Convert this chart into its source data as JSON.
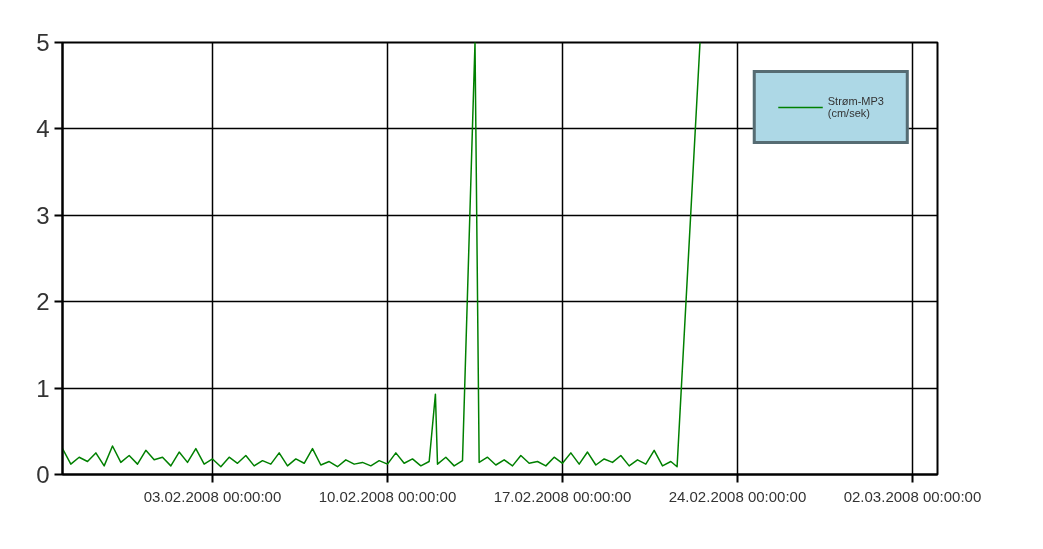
{
  "chart_data": {
    "type": "line",
    "x": [
      "2008-01-28T00:00",
      "2008-01-28T08:00",
      "2008-01-28T16:00",
      "2008-01-29T00:00",
      "2008-01-29T08:00",
      "2008-01-29T16:00",
      "2008-01-30T00:00",
      "2008-01-30T08:00",
      "2008-01-30T16:00",
      "2008-01-31T00:00",
      "2008-01-31T08:00",
      "2008-01-31T16:00",
      "2008-02-01T00:00",
      "2008-02-01T08:00",
      "2008-02-01T16:00",
      "2008-02-02T00:00",
      "2008-02-02T08:00",
      "2008-02-02T16:00",
      "2008-02-03T00:00",
      "2008-02-03T08:00",
      "2008-02-03T16:00",
      "2008-02-04T00:00",
      "2008-02-04T08:00",
      "2008-02-04T16:00",
      "2008-02-05T00:00",
      "2008-02-05T08:00",
      "2008-02-05T16:00",
      "2008-02-06T00:00",
      "2008-02-06T08:00",
      "2008-02-06T16:00",
      "2008-02-07T00:00",
      "2008-02-07T08:00",
      "2008-02-07T16:00",
      "2008-02-08T00:00",
      "2008-02-08T08:00",
      "2008-02-08T16:00",
      "2008-02-09T00:00",
      "2008-02-09T08:00",
      "2008-02-09T16:00",
      "2008-02-10T00:00",
      "2008-02-10T08:00",
      "2008-02-10T16:00",
      "2008-02-11T00:00",
      "2008-02-11T08:00",
      "2008-02-11T16:00",
      "2008-02-11T22:00",
      "2008-02-12T00:00",
      "2008-02-12T08:00",
      "2008-02-12T16:00",
      "2008-02-13T00:00",
      "2008-02-13T12:00",
      "2008-02-13T16:00",
      "2008-02-14T00:00",
      "2008-02-14T08:00",
      "2008-02-14T16:00",
      "2008-02-15T00:00",
      "2008-02-15T08:00",
      "2008-02-15T16:00",
      "2008-02-16T00:00",
      "2008-02-16T08:00",
      "2008-02-16T16:00",
      "2008-02-17T00:00",
      "2008-02-17T08:00",
      "2008-02-17T16:00",
      "2008-02-18T00:00",
      "2008-02-18T08:00",
      "2008-02-18T16:00",
      "2008-02-19T00:00",
      "2008-02-19T08:00",
      "2008-02-19T16:00",
      "2008-02-20T00:00",
      "2008-02-20T08:00",
      "2008-02-20T16:00",
      "2008-02-21T00:00",
      "2008-02-21T08:00",
      "2008-02-21T14:00",
      "2008-02-22T12:00"
    ],
    "series": [
      {
        "name": "Strøm-MP3 (cm/sek)",
        "color": "#008000",
        "values": [
          0.3,
          0.12,
          0.2,
          0.15,
          0.25,
          0.1,
          0.33,
          0.14,
          0.22,
          0.12,
          0.28,
          0.17,
          0.2,
          0.1,
          0.26,
          0.14,
          0.3,
          0.12,
          0.18,
          0.09,
          0.2,
          0.13,
          0.22,
          0.1,
          0.16,
          0.12,
          0.25,
          0.1,
          0.18,
          0.13,
          0.3,
          0.11,
          0.15,
          0.09,
          0.17,
          0.12,
          0.14,
          0.1,
          0.16,
          0.12,
          0.25,
          0.13,
          0.18,
          0.1,
          0.15,
          0.93,
          0.12,
          0.2,
          0.1,
          0.16,
          5,
          0.14,
          0.2,
          0.11,
          0.17,
          0.1,
          0.22,
          0.13,
          0.15,
          0.1,
          0.2,
          0.13,
          0.25,
          0.12,
          0.26,
          0.11,
          0.18,
          0.14,
          0.22,
          0.1,
          0.17,
          0.12,
          0.28,
          0.1,
          0.15,
          0.09,
          5
        ]
      }
    ],
    "xlim": [
      "2008-01-28T00:00",
      "2008-03-03T00:00"
    ],
    "xticks": [
      {
        "value": "2008-02-03T00:00",
        "label": "03.02.2008 00:00:00"
      },
      {
        "value": "2008-02-10T00:00",
        "label": "10.02.2008 00:00:00"
      },
      {
        "value": "2008-02-17T00:00",
        "label": "17.02.2008 00:00:00"
      },
      {
        "value": "2008-02-24T00:00",
        "label": "24.02.2008 00:00:00"
      },
      {
        "value": "2008-03-02T00:00",
        "label": "02.03.2008 00:00:00"
      }
    ],
    "ylim": [
      0,
      5
    ],
    "yticks": [
      0,
      1,
      2,
      3,
      4,
      5
    ],
    "grid": true,
    "legend": "top right",
    "line_style": "solid"
  }
}
